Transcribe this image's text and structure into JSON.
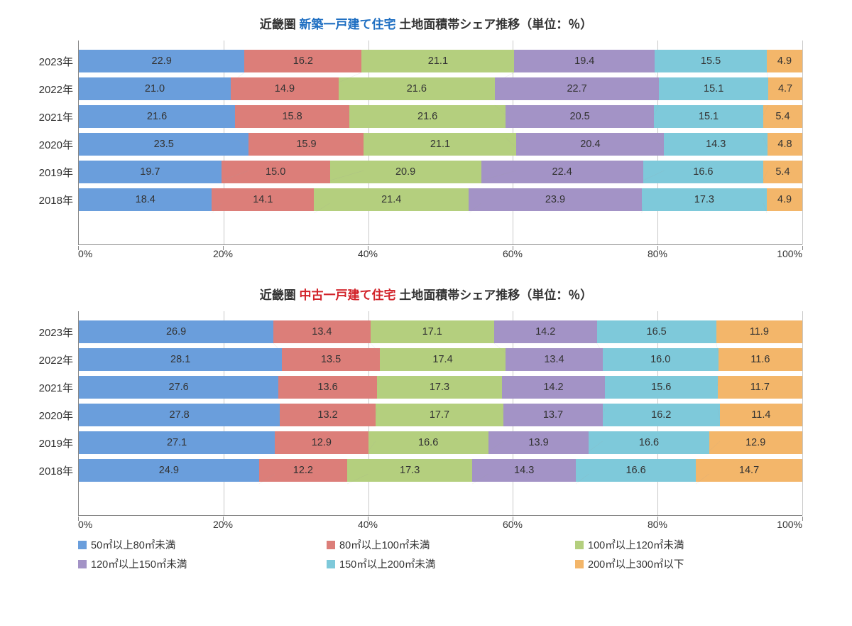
{
  "colors": {
    "series": [
      "#6a9edc",
      "#dc7e79",
      "#b4cf7e",
      "#a393c6",
      "#7ec9da",
      "#f3b66a"
    ],
    "text": "#333333",
    "grid": "#c8c8c8",
    "axis": "#888888",
    "connector": "#9e9e9e",
    "title_accent_new": "#1f6fc2",
    "title_accent_used": "#d2232a",
    "background": "#ffffff"
  },
  "typography": {
    "title_fontsize": 17,
    "label_fontsize": 15,
    "value_fontsize": 14.5,
    "tick_fontsize": 14,
    "legend_fontsize": 14.5
  },
  "xaxis": {
    "ticks": [
      0,
      20,
      40,
      60,
      80,
      100
    ],
    "tick_labels": [
      "0%",
      "20%",
      "40%",
      "60%",
      "80%",
      "100%"
    ],
    "xlim": [
      0,
      100
    ]
  },
  "legend": {
    "items": [
      "50㎡以上80㎡未満",
      "80㎡以上100㎡未満",
      "100㎡以上120㎡未満",
      "120㎡以上150㎡未満",
      "150㎡以上200㎡未満",
      "200㎡以上300㎡以下"
    ]
  },
  "charts": [
    {
      "id": "new",
      "type": "stacked-bar-100",
      "title_parts": [
        {
          "text": "近畿圏 ",
          "color": "#333333"
        },
        {
          "text": "新築一戸建て住宅",
          "color": "#1f6fc2"
        },
        {
          "text": " 土地面積帯シェア推移（単位：％）",
          "color": "#333333"
        }
      ],
      "categories": [
        "2023年",
        "2022年",
        "2021年",
        "2020年",
        "2019年",
        "2018年"
      ],
      "rows": [
        [
          22.9,
          16.2,
          21.1,
          19.4,
          15.5,
          4.9
        ],
        [
          21.0,
          14.9,
          21.6,
          22.7,
          15.1,
          4.7
        ],
        [
          21.6,
          15.8,
          21.6,
          20.5,
          15.1,
          5.4
        ],
        [
          23.5,
          15.9,
          21.1,
          20.4,
          14.3,
          4.8
        ],
        [
          19.7,
          15.0,
          20.9,
          22.4,
          16.6,
          5.4
        ],
        [
          18.4,
          14.1,
          21.4,
          23.9,
          17.3,
          4.9
        ]
      ]
    },
    {
      "id": "used",
      "type": "stacked-bar-100",
      "title_parts": [
        {
          "text": "近畿圏  ",
          "color": "#333333"
        },
        {
          "text": "中古一戸建て住宅",
          "color": "#d2232a"
        },
        {
          "text": " 土地面積帯シェア推移（単位：％）",
          "color": "#333333"
        }
      ],
      "categories": [
        "2023年",
        "2022年",
        "2021年",
        "2020年",
        "2019年",
        "2018年"
      ],
      "rows": [
        [
          26.9,
          13.4,
          17.1,
          14.2,
          16.5,
          11.9
        ],
        [
          28.1,
          13.5,
          17.4,
          13.4,
          16.0,
          11.6
        ],
        [
          27.6,
          13.6,
          17.3,
          14.2,
          15.6,
          11.7
        ],
        [
          27.8,
          13.2,
          17.7,
          13.7,
          16.2,
          11.4
        ],
        [
          27.1,
          12.9,
          16.6,
          13.9,
          16.6,
          12.9
        ],
        [
          24.9,
          12.2,
          17.3,
          14.3,
          16.6,
          14.7
        ]
      ]
    }
  ]
}
